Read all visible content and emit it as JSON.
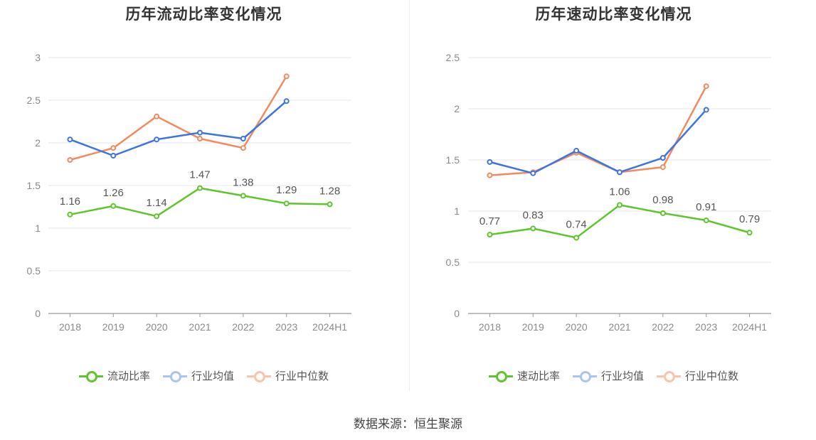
{
  "colors": {
    "main": "#5ec52a",
    "avg": "#3d74e2",
    "median": "#f28a5f",
    "grid": "#e6e6ec",
    "axis": "#999999",
    "tick_text": "#8a8a8a",
    "label_text": "#555555"
  },
  "chart_data": [
    {
      "type": "line",
      "title": "历年流动比率变化情况",
      "categories": [
        "2018",
        "2019",
        "2020",
        "2021",
        "2022",
        "2023",
        "2024H1"
      ],
      "ylim": [
        0,
        3
      ],
      "yticks": [
        "0",
        "0.5",
        "1",
        "1.5",
        "2",
        "2.5",
        "3"
      ],
      "grid": true,
      "legend_position": "bottom",
      "series": [
        {
          "name": "流动比率",
          "key": "main",
          "values": [
            1.16,
            1.26,
            1.14,
            1.47,
            1.38,
            1.29,
            1.28
          ],
          "labels": [
            "1.16",
            "1.26",
            "1.14",
            "1.47",
            "1.38",
            "1.29",
            "1.28"
          ]
        },
        {
          "name": "行业均值",
          "key": "avg",
          "values": [
            2.04,
            1.85,
            2.04,
            2.12,
            2.05,
            2.49,
            null
          ]
        },
        {
          "name": "行业中位数",
          "key": "median",
          "values": [
            1.8,
            1.94,
            2.31,
            2.05,
            1.94,
            2.78,
            null
          ]
        }
      ]
    },
    {
      "type": "line",
      "title": "历年速动比率变化情况",
      "categories": [
        "2018",
        "2019",
        "2020",
        "2021",
        "2022",
        "2023",
        "2024H1"
      ],
      "ylim": [
        0,
        2.5
      ],
      "yticks": [
        "0",
        "0.5",
        "1",
        "1.5",
        "2",
        "2.5"
      ],
      "grid": true,
      "legend_position": "bottom",
      "series": [
        {
          "name": "速动比率",
          "key": "main",
          "values": [
            0.77,
            0.83,
            0.74,
            1.06,
            0.98,
            0.91,
            0.79
          ],
          "labels": [
            "0.77",
            "0.83",
            "0.74",
            "1.06",
            "0.98",
            "0.91",
            "0.79"
          ]
        },
        {
          "name": "行业均值",
          "key": "avg",
          "values": [
            1.48,
            1.37,
            1.59,
            1.38,
            1.52,
            1.99,
            null
          ]
        },
        {
          "name": "行业中位数",
          "key": "median",
          "values": [
            1.35,
            1.38,
            1.57,
            1.38,
            1.43,
            2.22,
            null
          ]
        }
      ]
    }
  ],
  "source_text": "数据来源：恒生聚源"
}
